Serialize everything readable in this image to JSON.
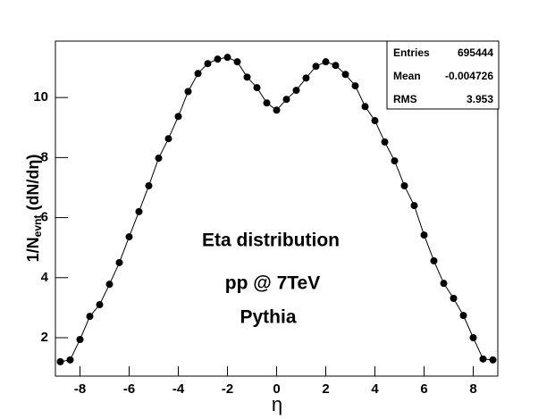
{
  "chart_data": {
    "type": "line",
    "xlabel": "η",
    "ylabel": {
      "main": "1/N",
      "sub": "evnt",
      "rest": " (dN/dη)"
    },
    "annotations": [
      "Eta distribution",
      "pp @ 7TeV",
      "Pythia"
    ],
    "stats": [
      {
        "label": "Entries",
        "value": 695444
      },
      {
        "label": "Mean",
        "value": -0.004726
      },
      {
        "label": "RMS",
        "value": 3.953
      }
    ],
    "x": [
      -8.8,
      -8.4,
      -8.0,
      -7.6,
      -7.2,
      -6.8,
      -6.4,
      -6.0,
      -5.6,
      -5.2,
      -4.8,
      -4.4,
      -4.0,
      -3.6,
      -3.2,
      -2.8,
      -2.4,
      -2.0,
      -1.6,
      -1.2,
      -0.8,
      -0.4,
      0.0,
      0.4,
      0.8,
      1.2,
      1.6,
      2.0,
      2.4,
      2.8,
      3.2,
      3.6,
      4.0,
      4.4,
      4.8,
      5.2,
      5.6,
      6.0,
      6.4,
      6.8,
      7.2,
      7.6,
      8.0,
      8.4,
      8.8
    ],
    "series": [
      {
        "color": "#000000",
        "values": [
          1.2,
          1.26,
          1.94,
          2.71,
          3.1,
          3.78,
          4.5,
          5.36,
          6.2,
          7.06,
          7.98,
          8.63,
          9.37,
          10.2,
          10.8,
          11.13,
          11.28,
          11.34,
          11.19,
          10.68,
          10.33,
          9.82,
          9.58,
          9.94,
          10.24,
          10.65,
          11.04,
          11.19,
          11.07,
          10.77,
          10.39,
          9.7,
          9.23,
          8.52,
          7.89,
          7.06,
          6.4,
          5.42,
          4.56,
          3.81,
          3.31,
          2.74,
          2.0,
          1.29,
          1.26
        ]
      }
    ],
    "xlim": [
      -9,
      9
    ],
    "xticks": [
      -8,
      -6,
      -4,
      -2,
      0,
      2,
      4,
      6,
      8
    ],
    "ylim": [
      0.72,
      11.88
    ],
    "yticks": [
      2,
      4,
      6,
      8,
      10
    ],
    "grid": false
  }
}
